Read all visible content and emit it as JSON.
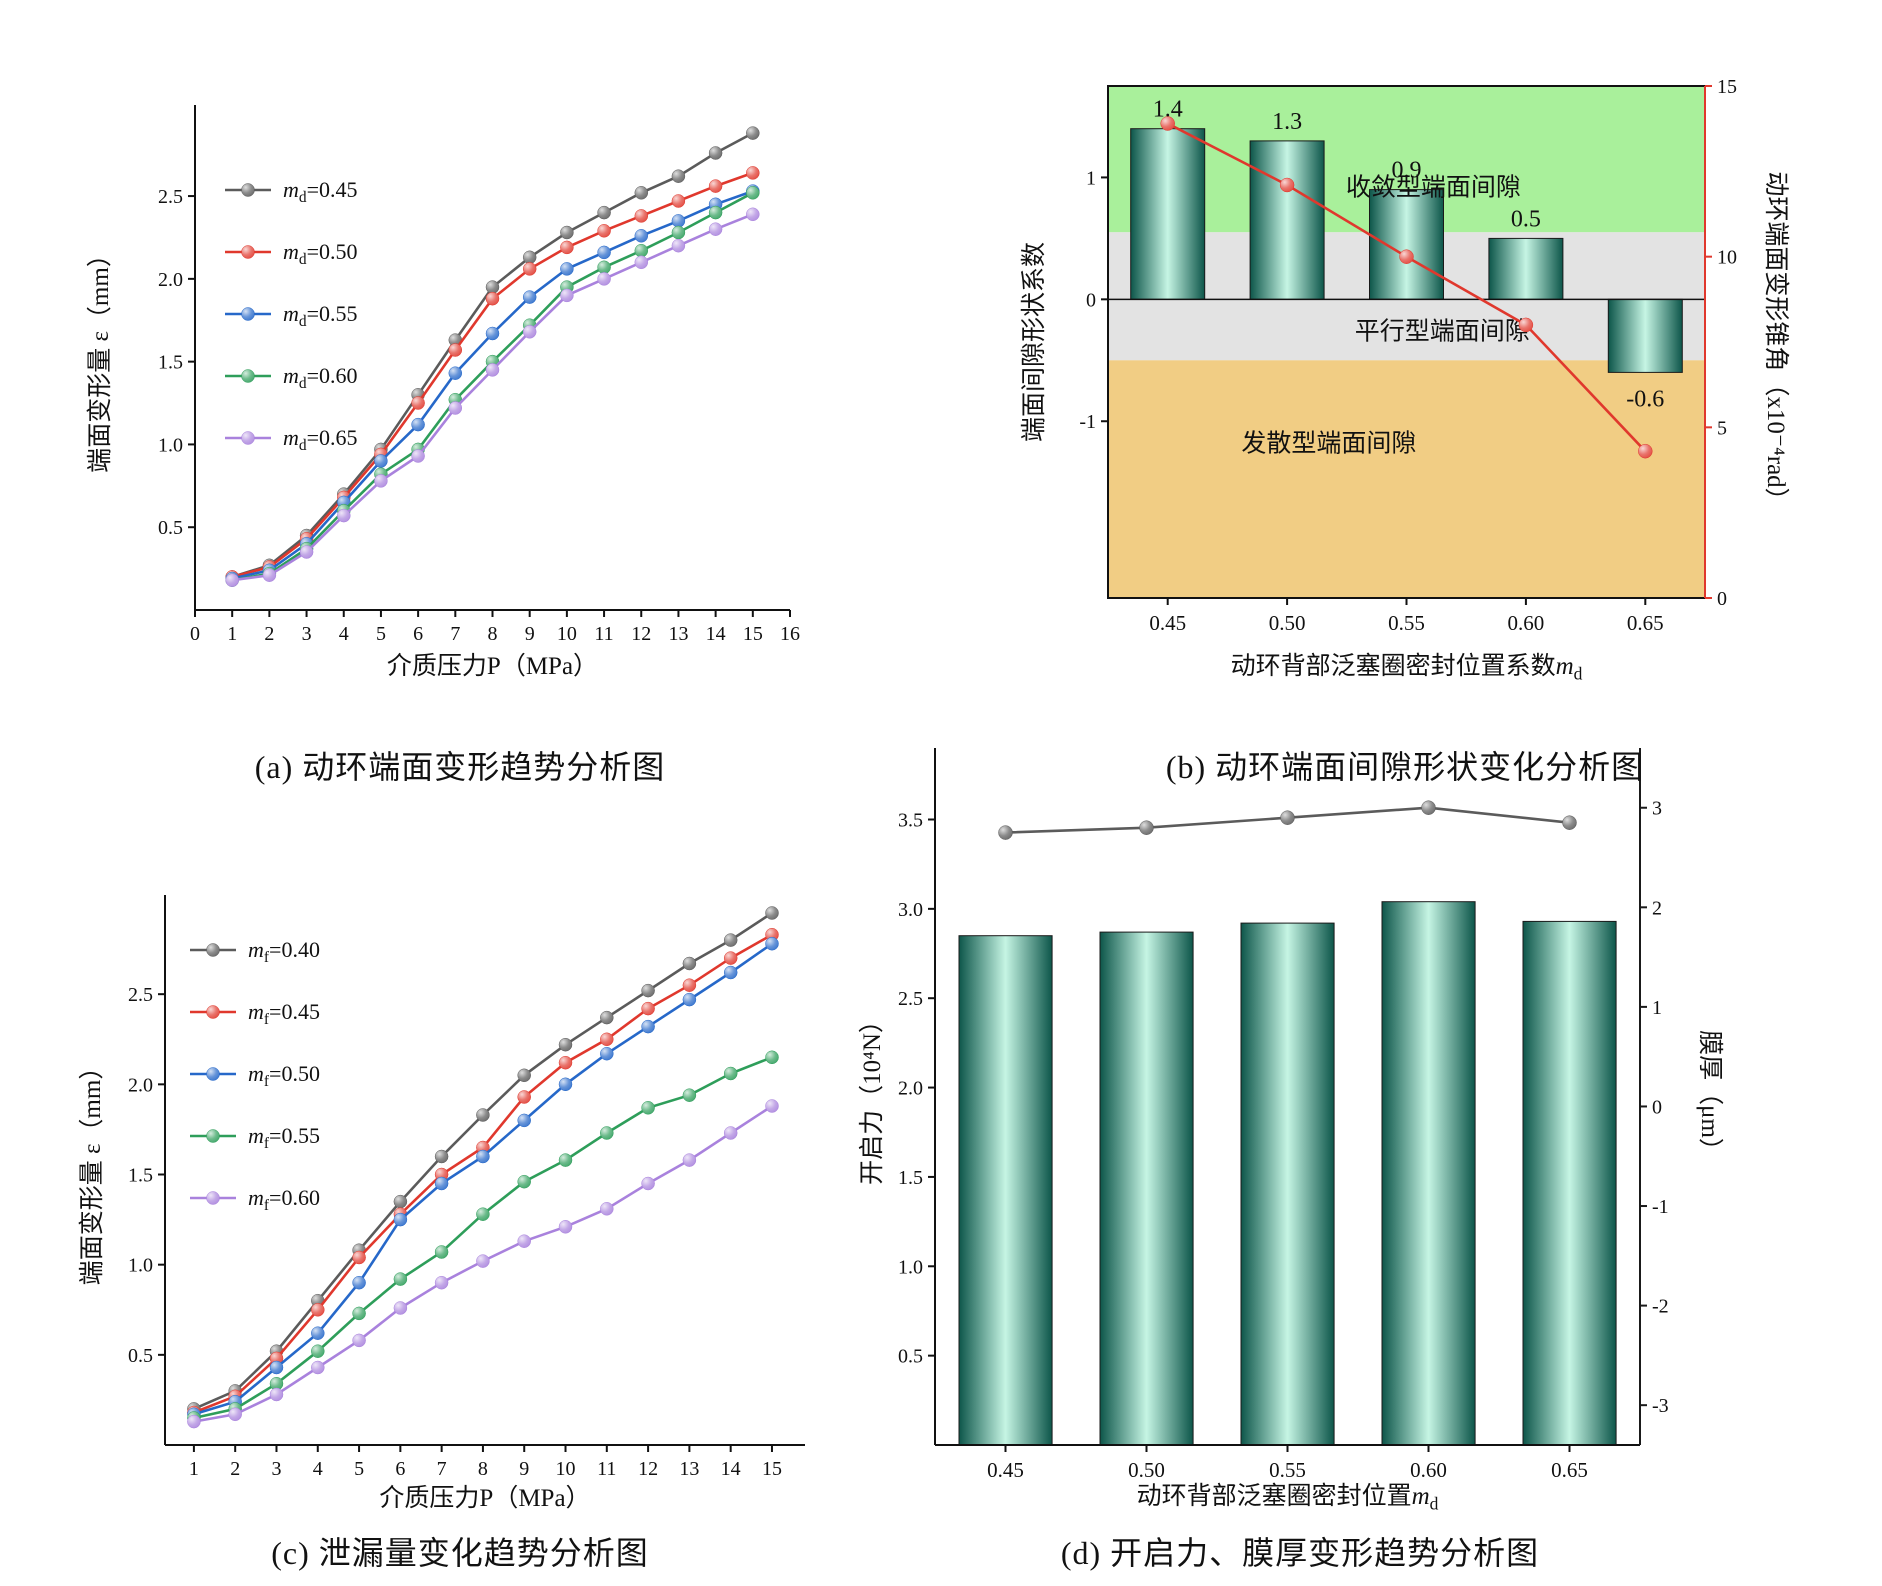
{
  "captions": {
    "a": "(a) 动环端面变形趋势分析图",
    "b": "(b) 动环端面间隙形状变化分析图",
    "c": "(c) 泄漏量变化趋势分析图",
    "d": "(d) 开启力、膜厚变形趋势分析图"
  },
  "chart_data": [
    {
      "id": "a",
      "type": "line",
      "title": "",
      "xlabel": "介质压力P（MPa）",
      "ylabel": "端面变形量 ε（mm）",
      "x_range": [
        0,
        16
      ],
      "x_ticks": [
        0,
        1,
        2,
        3,
        4,
        5,
        6,
        7,
        8,
        9,
        10,
        11,
        12,
        13,
        14,
        15,
        16
      ],
      "x_tick_decimals": 0,
      "y_range": [
        0,
        3.05
      ],
      "y_ticks": [
        0.5,
        1.0,
        1.5,
        2.0,
        2.5
      ],
      "y_tick_decimals": 1,
      "legend_position": "top-left",
      "grid": false,
      "x": [
        1,
        2,
        3,
        4,
        5,
        6,
        7,
        8,
        9,
        10,
        11,
        12,
        13,
        14,
        15
      ],
      "series": [
        {
          "name": "m_d=0.45",
          "color": "#5b5b5b",
          "values": [
            0.2,
            0.27,
            0.45,
            0.7,
            0.97,
            1.3,
            1.63,
            1.95,
            2.13,
            2.28,
            2.4,
            2.52,
            2.62,
            2.76,
            2.88
          ]
        },
        {
          "name": "m_d=0.50",
          "color": "#e0382d",
          "values": [
            0.2,
            0.26,
            0.43,
            0.68,
            0.94,
            1.25,
            1.57,
            1.88,
            2.06,
            2.19,
            2.29,
            2.38,
            2.47,
            2.56,
            2.64
          ]
        },
        {
          "name": "m_d=0.55",
          "color": "#2668c9",
          "values": [
            0.19,
            0.24,
            0.4,
            0.65,
            0.9,
            1.12,
            1.43,
            1.67,
            1.89,
            2.06,
            2.16,
            2.26,
            2.35,
            2.45,
            2.53
          ]
        },
        {
          "name": "m_d=0.60",
          "color": "#2e9e5a",
          "values": [
            0.18,
            0.22,
            0.37,
            0.6,
            0.82,
            0.97,
            1.27,
            1.5,
            1.72,
            1.95,
            2.07,
            2.17,
            2.28,
            2.4,
            2.52
          ]
        },
        {
          "name": "m_d=0.65",
          "color": "#a982dd",
          "values": [
            0.18,
            0.21,
            0.35,
            0.57,
            0.78,
            0.93,
            1.22,
            1.45,
            1.68,
            1.9,
            2.0,
            2.1,
            2.2,
            2.3,
            2.39
          ]
        }
      ]
    },
    {
      "id": "b",
      "type": "bar-line",
      "title": "",
      "xlabel": "动环背部泛塞圈密封位置系数m_d",
      "ylabel": "端面间隙形状系数",
      "y2label": "动环端面变形锥角（x10⁻⁴rad）",
      "categories": [
        0.45,
        0.5,
        0.55,
        0.6,
        0.65
      ],
      "x_tick_decimals": 2,
      "y_range": [
        -2.45,
        1.75
      ],
      "y_ticks": [
        -1,
        0,
        1
      ],
      "y_tick_decimals": 0,
      "y2_range": [
        0,
        15
      ],
      "y2_ticks": [
        0,
        5,
        10,
        15
      ],
      "y2_tick_decimals": 0,
      "y2_color": "#e0382d",
      "zero_line": true,
      "bars": {
        "values": [
          1.4,
          1.3,
          0.9,
          0.5,
          -0.6
        ],
        "label_decimals": 1,
        "gradient": [
          "#0d564a",
          "#c6f5e4"
        ],
        "outline": "#1a1a1a"
      },
      "line": {
        "axis": "y2",
        "color": "#e0382d",
        "values": [
          13.9,
          12.1,
          10.0,
          8.0,
          4.3
        ]
      },
      "zones": [
        {
          "from": 0.55,
          "to": 1.75,
          "color": "#a9f09b",
          "label": "收敛型端面间隙",
          "label_fx": 0.545,
          "label_y": 0.85
        },
        {
          "from": -0.5,
          "to": 0.55,
          "color": "#e3e3e3",
          "label": "平行型端面间隙",
          "label_fx": 0.56,
          "label_y": -0.33
        },
        {
          "from": -2.45,
          "to": -0.5,
          "color": "#f1cd84",
          "label": "发散型端面间隙",
          "label_fx": 0.37,
          "label_y": -1.25
        }
      ]
    },
    {
      "id": "c",
      "type": "line",
      "title": "",
      "xlabel": "介质压力P（MPa）",
      "ylabel": "端面变形量 ε（mm）",
      "x_range": [
        0.3,
        15.8
      ],
      "x_ticks": [
        1,
        2,
        3,
        4,
        5,
        6,
        7,
        8,
        9,
        10,
        11,
        12,
        13,
        14,
        15
      ],
      "x_tick_decimals": 0,
      "y_range": [
        0,
        3.05
      ],
      "y_ticks": [
        0.5,
        1.0,
        1.5,
        2.0,
        2.5
      ],
      "y_tick_decimals": 1,
      "legend_position": "top-left",
      "grid": false,
      "x": [
        1,
        2,
        3,
        4,
        5,
        6,
        7,
        8,
        9,
        10,
        11,
        12,
        13,
        14,
        15
      ],
      "series": [
        {
          "name": "m_f=0.40",
          "color": "#5b5b5b",
          "values": [
            0.2,
            0.3,
            0.52,
            0.8,
            1.08,
            1.35,
            1.6,
            1.83,
            2.05,
            2.22,
            2.37,
            2.52,
            2.67,
            2.8,
            2.95
          ]
        },
        {
          "name": "m_f=0.45",
          "color": "#e0382d",
          "values": [
            0.18,
            0.27,
            0.48,
            0.75,
            1.04,
            1.28,
            1.5,
            1.65,
            1.93,
            2.12,
            2.25,
            2.42,
            2.55,
            2.7,
            2.83
          ]
        },
        {
          "name": "m_f=0.50",
          "color": "#2668c9",
          "values": [
            0.17,
            0.24,
            0.43,
            0.62,
            0.9,
            1.25,
            1.45,
            1.6,
            1.8,
            2.0,
            2.17,
            2.32,
            2.47,
            2.62,
            2.78
          ]
        },
        {
          "name": "m_f=0.55",
          "color": "#2e9e5a",
          "values": [
            0.15,
            0.2,
            0.34,
            0.52,
            0.73,
            0.92,
            1.07,
            1.28,
            1.46,
            1.58,
            1.73,
            1.87,
            1.94,
            2.06,
            2.15
          ]
        },
        {
          "name": "m_f=0.60",
          "color": "#a982dd",
          "values": [
            0.13,
            0.17,
            0.28,
            0.43,
            0.58,
            0.76,
            0.9,
            1.02,
            1.13,
            1.21,
            1.31,
            1.45,
            1.58,
            1.73,
            1.88
          ]
        }
      ]
    },
    {
      "id": "d",
      "type": "bar-line",
      "title": "",
      "xlabel": "动环背部泛塞圈密封位置m_d",
      "ylabel": "开启力（10⁴N）",
      "y2label": "膜厚（μm）",
      "categories": [
        0.45,
        0.5,
        0.55,
        0.6,
        0.65
      ],
      "x_tick_decimals": 2,
      "y_range": [
        0,
        3.9
      ],
      "y_ticks": [
        0.5,
        1.0,
        1.5,
        2.0,
        2.5,
        3.0,
        3.5
      ],
      "y_tick_decimals": 1,
      "y2_range": [
        -3.4,
        3.6
      ],
      "y2_ticks": [
        3,
        2,
        1,
        0,
        -1,
        -2,
        -3
      ],
      "y2_tick_decimals": 0,
      "y2_color": "#1a1a1a",
      "zero_line": false,
      "bars": {
        "values": [
          2.85,
          2.87,
          2.92,
          3.04,
          2.93
        ],
        "gradient": [
          "#0d564a",
          "#c6f5e4"
        ],
        "outline": "#1a1a1a"
      },
      "line": {
        "axis": "y2",
        "color": "#5b5b5b",
        "values": [
          2.75,
          2.8,
          2.9,
          3.0,
          2.85
        ]
      }
    }
  ]
}
